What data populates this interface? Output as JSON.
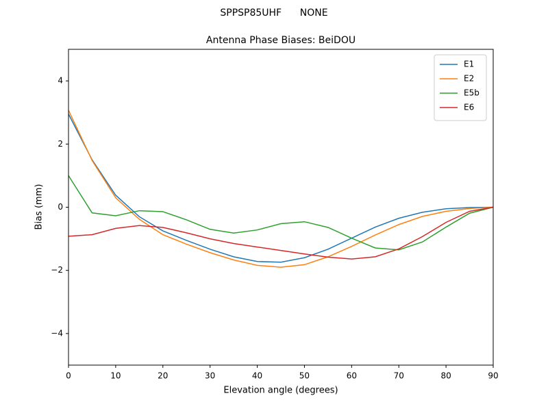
{
  "chart_data": {
    "type": "line",
    "suptitle": "SPPSP85UHF      NONE",
    "title": "Antenna Phase Biases: BeiDOU",
    "xlabel": "Elevation angle (degrees)",
    "ylabel": "Bias (mm)",
    "x": [
      0,
      5,
      10,
      15,
      20,
      25,
      30,
      35,
      40,
      45,
      50,
      55,
      60,
      65,
      70,
      75,
      80,
      85,
      90
    ],
    "series": [
      {
        "name": "E1",
        "color": "#1f77b4",
        "values": [
          2.95,
          1.5,
          0.38,
          -0.3,
          -0.75,
          -1.05,
          -1.33,
          -1.57,
          -1.72,
          -1.74,
          -1.6,
          -1.33,
          -0.98,
          -0.63,
          -0.35,
          -0.16,
          -0.05,
          -0.01,
          0
        ]
      },
      {
        "name": "E2",
        "color": "#ff7f0e",
        "values": [
          3.07,
          1.48,
          0.3,
          -0.38,
          -0.87,
          -1.17,
          -1.44,
          -1.67,
          -1.84,
          -1.9,
          -1.82,
          -1.57,
          -1.24,
          -0.88,
          -0.55,
          -0.29,
          -0.13,
          -0.04,
          0
        ]
      },
      {
        "name": "E5b",
        "color": "#2ca02c",
        "values": [
          1.0,
          -0.18,
          -0.27,
          -0.11,
          -0.14,
          -0.4,
          -0.7,
          -0.82,
          -0.72,
          -0.52,
          -0.46,
          -0.64,
          -0.98,
          -1.29,
          -1.35,
          -1.1,
          -0.63,
          -0.19,
          0
        ]
      },
      {
        "name": "E6",
        "color": "#d62728",
        "values": [
          -0.92,
          -0.87,
          -0.67,
          -0.58,
          -0.64,
          -0.81,
          -1.0,
          -1.15,
          -1.26,
          -1.37,
          -1.48,
          -1.58,
          -1.64,
          -1.57,
          -1.32,
          -0.93,
          -0.48,
          -0.13,
          0
        ]
      }
    ],
    "xlim": [
      0,
      90
    ],
    "xticks": [
      0,
      10,
      20,
      30,
      40,
      50,
      60,
      70,
      80,
      90
    ],
    "ylim": [
      -5,
      5
    ],
    "yticks": [
      {
        "value": -4,
        "label": "−4"
      },
      {
        "value": -2,
        "label": "−2"
      },
      0,
      2,
      4
    ],
    "grid": false,
    "legend": "upper-right"
  }
}
